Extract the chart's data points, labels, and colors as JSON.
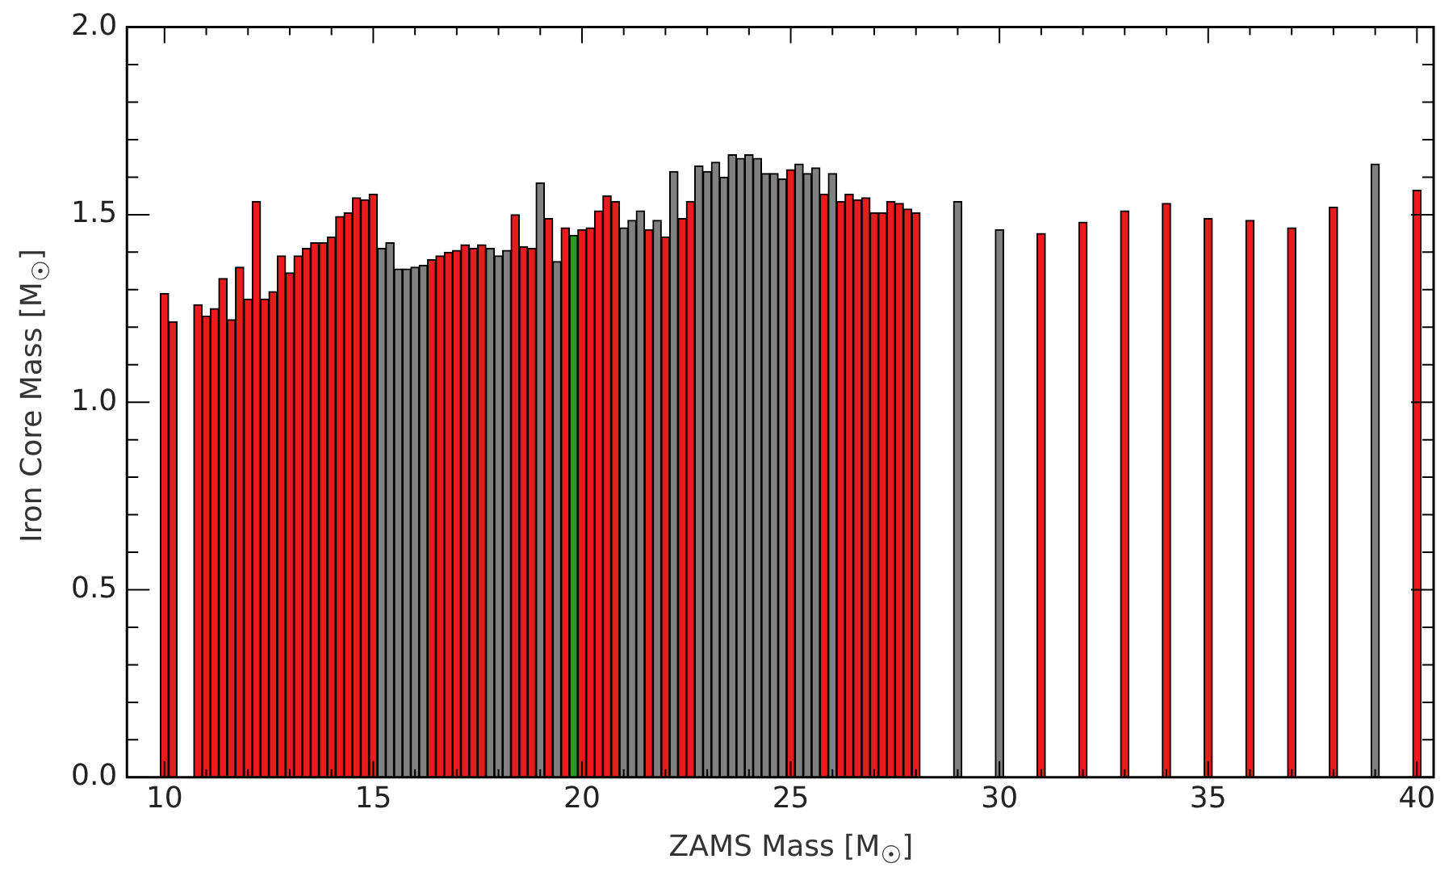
{
  "chart_data": {
    "type": "bar",
    "xlabel": "ZAMS Mass [M$_{☉}$]",
    "ylabel": "Iron Core Mass [M$_{☉}$]",
    "x": [
      10.0,
      10.2,
      10.8,
      11.0,
      11.2,
      11.4,
      11.6,
      11.8,
      12.0,
      12.2,
      12.4,
      12.6,
      12.8,
      13.0,
      13.2,
      13.4,
      13.6,
      13.8,
      14.0,
      14.2,
      14.4,
      14.6,
      14.8,
      15.0,
      15.2,
      15.4,
      15.6,
      15.8,
      16.0,
      16.2,
      16.4,
      16.6,
      16.8,
      17.0,
      17.2,
      17.4,
      17.6,
      17.8,
      18.0,
      18.2,
      18.4,
      18.6,
      18.8,
      19.0,
      19.2,
      19.4,
      19.6,
      19.8,
      20.0,
      20.2,
      20.4,
      20.6,
      20.8,
      21.0,
      21.2,
      21.4,
      21.6,
      21.8,
      22.0,
      22.2,
      22.4,
      22.6,
      22.8,
      23.0,
      23.2,
      23.4,
      23.6,
      23.8,
      24.0,
      24.2,
      24.4,
      24.6,
      24.8,
      25.0,
      25.2,
      25.4,
      25.6,
      25.8,
      26.0,
      26.2,
      26.4,
      26.6,
      26.8,
      27.0,
      27.2,
      27.4,
      27.6,
      27.8,
      28.0,
      29,
      30,
      31,
      32,
      33,
      34,
      35,
      36,
      37,
      38,
      39,
      40
    ],
    "values": [
      1.29,
      1.215,
      1.26,
      1.23,
      1.25,
      1.33,
      1.22,
      1.36,
      1.275,
      1.535,
      1.275,
      1.295,
      1.39,
      1.345,
      1.39,
      1.41,
      1.425,
      1.425,
      1.44,
      1.495,
      1.505,
      1.545,
      1.54,
      1.555,
      1.41,
      1.425,
      1.355,
      1.355,
      1.36,
      1.365,
      1.38,
      1.39,
      1.4,
      1.405,
      1.42,
      1.41,
      1.42,
      1.41,
      1.39,
      1.405,
      1.5,
      1.415,
      1.41,
      1.585,
      1.49,
      1.375,
      1.465,
      1.445,
      1.46,
      1.465,
      1.51,
      1.55,
      1.535,
      1.465,
      1.485,
      1.51,
      1.46,
      1.485,
      1.44,
      1.615,
      1.49,
      1.535,
      1.63,
      1.615,
      1.64,
      1.6,
      1.66,
      1.65,
      1.66,
      1.65,
      1.61,
      1.61,
      1.595,
      1.62,
      1.635,
      1.61,
      1.625,
      1.555,
      1.61,
      1.535,
      1.555,
      1.54,
      1.545,
      1.505,
      1.505,
      1.535,
      1.53,
      1.515,
      1.505,
      1.535,
      1.46,
      1.45,
      1.48,
      1.51,
      1.53,
      1.49,
      1.485,
      1.465,
      1.52,
      1.635,
      1.565
    ],
    "colors": [
      "#e81c1c",
      "#e81c1c",
      "#e81c1c",
      "#e81c1c",
      "#e81c1c",
      "#e81c1c",
      "#e81c1c",
      "#e81c1c",
      "#e81c1c",
      "#e81c1c",
      "#e81c1c",
      "#e81c1c",
      "#e81c1c",
      "#e81c1c",
      "#e81c1c",
      "#e81c1c",
      "#e81c1c",
      "#e81c1c",
      "#e81c1c",
      "#e81c1c",
      "#e81c1c",
      "#e81c1c",
      "#e81c1c",
      "#e81c1c",
      "#808080",
      "#808080",
      "#808080",
      "#808080",
      "#808080",
      "#808080",
      "#e81c1c",
      "#e81c1c",
      "#e81c1c",
      "#e81c1c",
      "#e81c1c",
      "#e81c1c",
      "#e81c1c",
      "#808080",
      "#808080",
      "#808080",
      "#e81c1c",
      "#e81c1c",
      "#e81c1c",
      "#808080",
      "#e81c1c",
      "#808080",
      "#e81c1c",
      "#1ea01e",
      "#e81c1c",
      "#e81c1c",
      "#e81c1c",
      "#e81c1c",
      "#e81c1c",
      "#808080",
      "#808080",
      "#808080",
      "#e81c1c",
      "#808080",
      "#e81c1c",
      "#808080",
      "#e81c1c",
      "#e81c1c",
      "#808080",
      "#808080",
      "#808080",
      "#808080",
      "#808080",
      "#808080",
      "#808080",
      "#808080",
      "#808080",
      "#808080",
      "#808080",
      "#e81c1c",
      "#808080",
      "#808080",
      "#808080",
      "#e81c1c",
      "#808080",
      "#e81c1c",
      "#e81c1c",
      "#e81c1c",
      "#e81c1c",
      "#e81c1c",
      "#e81c1c",
      "#e81c1c",
      "#e81c1c",
      "#e81c1c",
      "#e81c1c",
      "#808080",
      "#808080",
      "#e81c1c",
      "#e81c1c",
      "#e81c1c",
      "#e81c1c",
      "#e81c1c",
      "#e81c1c",
      "#e81c1c",
      "#e81c1c",
      "#808080",
      "#e81c1c"
    ],
    "xlim": [
      9.1,
      40.4
    ],
    "xticks": [
      10,
      {
        "value": 11,
        "label": null
      },
      {
        "value": 12,
        "label": null
      },
      {
        "value": 13,
        "label": null
      },
      {
        "value": 14,
        "label": null
      },
      15,
      {
        "value": 16,
        "label": null
      },
      {
        "value": 17,
        "label": null
      },
      {
        "value": 18,
        "label": null
      },
      {
        "value": 19,
        "label": null
      },
      20,
      {
        "value": 21,
        "label": null
      },
      {
        "value": 22,
        "label": null
      },
      {
        "value": 23,
        "label": null
      },
      {
        "value": 24,
        "label": null
      },
      25,
      {
        "value": 26,
        "label": null
      },
      {
        "value": 27,
        "label": null
      },
      {
        "value": 28,
        "label": null
      },
      {
        "value": 29,
        "label": null
      },
      30,
      {
        "value": 31,
        "label": null
      },
      {
        "value": 32,
        "label": null
      },
      {
        "value": 33,
        "label": null
      },
      {
        "value": 34,
        "label": null
      },
      35,
      {
        "value": 36,
        "label": null
      },
      {
        "value": 37,
        "label": null
      },
      {
        "value": 38,
        "label": null
      },
      {
        "value": 39,
        "label": null
      },
      40
    ],
    "ylim": [
      0,
      2
    ],
    "yticks": [
      {
        "value": 0,
        "label": "0.0"
      },
      {
        "value": 0.1,
        "label": null
      },
      {
        "value": 0.2,
        "label": null
      },
      {
        "value": 0.3,
        "label": null
      },
      {
        "value": 0.4,
        "label": null
      },
      {
        "value": 0.5,
        "label": "0.5"
      },
      {
        "value": 0.6,
        "label": null
      },
      {
        "value": 0.7,
        "label": null
      },
      {
        "value": 0.8,
        "label": null
      },
      {
        "value": 0.9,
        "label": null
      },
      {
        "value": 1,
        "label": "1.0"
      },
      {
        "value": 1.1,
        "label": null
      },
      {
        "value": 1.2,
        "label": null
      },
      {
        "value": 1.3,
        "label": null
      },
      {
        "value": 1.4,
        "label": null
      },
      {
        "value": 1.5,
        "label": "1.5"
      },
      {
        "value": 1.6,
        "label": null
      },
      {
        "value": 1.7,
        "label": null
      },
      {
        "value": 1.8,
        "label": null
      },
      {
        "value": 1.9,
        "label": null
      },
      {
        "value": 2,
        "label": "2.0"
      }
    ],
    "grid": false,
    "legend": false
  }
}
